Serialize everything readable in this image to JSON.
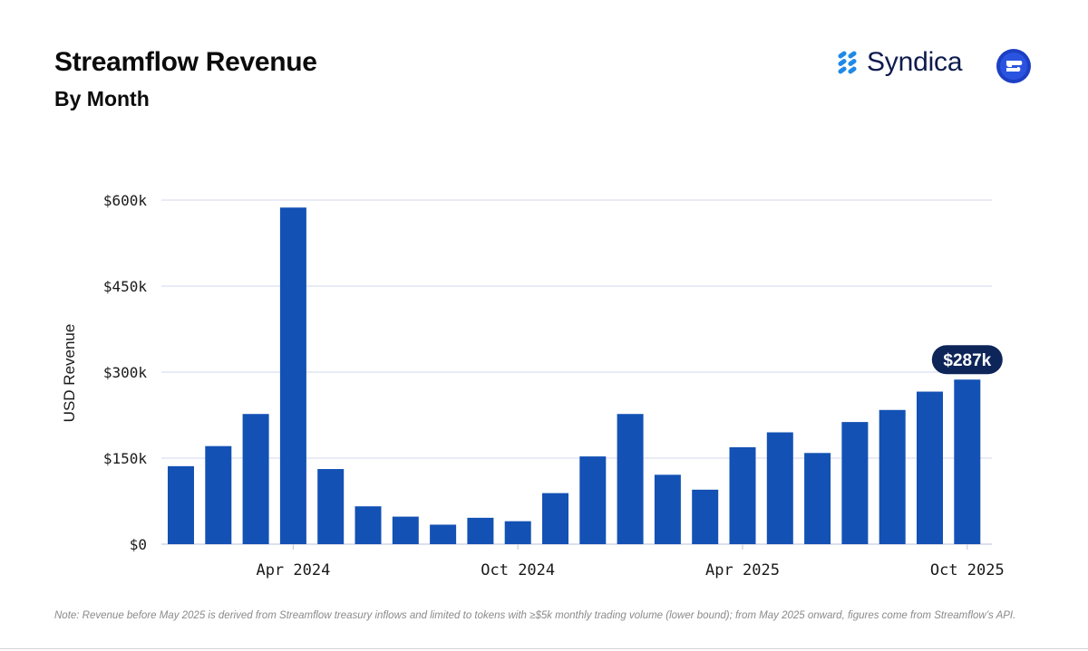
{
  "header": {
    "title": "Streamflow Revenue",
    "subtitle": "By Month",
    "brand_name": "Syndica",
    "brand_icon": "syndica-logo-icon",
    "app_icon": "streamflow-logo-icon"
  },
  "colors": {
    "bar": "#1351b4",
    "callout": "#0d2558",
    "grid": "#dcdff0",
    "axis": "#c9cce0"
  },
  "chart_data": {
    "type": "bar",
    "title": "Streamflow Revenue",
    "subtitle": "By Month",
    "xlabel": "",
    "ylabel": "USD Revenue",
    "ylim": [
      0,
      600000
    ],
    "yticks": [
      0,
      150000,
      300000,
      450000,
      600000
    ],
    "ytick_labels": [
      "$0",
      "$150k",
      "$300k",
      "$450k",
      "$600k"
    ],
    "categories": [
      "Jan 2024",
      "Feb 2024",
      "Mar 2024",
      "Apr 2024",
      "May 2024",
      "Jun 2024",
      "Jul 2024",
      "Aug 2024",
      "Sep 2024",
      "Oct 2024",
      "Nov 2024",
      "Dec 2024",
      "Jan 2025",
      "Feb 2025",
      "Mar 2025",
      "Apr 2025",
      "May 2025",
      "Jun 2025",
      "Jul 2025",
      "Aug 2025",
      "Sep 2025",
      "Oct 2025"
    ],
    "values": [
      136000,
      171000,
      227000,
      587000,
      131000,
      66000,
      48000,
      34000,
      46000,
      40000,
      89000,
      153000,
      227000,
      121000,
      95000,
      169000,
      195000,
      159000,
      213000,
      234000,
      266000,
      287000
    ],
    "x_tick_labels": [
      {
        "index": 3,
        "label": "Apr 2024"
      },
      {
        "index": 9,
        "label": "Oct 2024"
      },
      {
        "index": 15,
        "label": "Apr 2025"
      },
      {
        "index": 21,
        "label": "Oct 2025"
      }
    ],
    "grid": true,
    "annotations": [
      {
        "index": 21,
        "text": "$287k"
      }
    ]
  },
  "footnote": "Note: Revenue before May 2025 is derived from Streamflow treasury inflows and limited to tokens with ≥$5k monthly trading volume (lower bound); from May 2025 onward, figures come from Streamflow’s API."
}
